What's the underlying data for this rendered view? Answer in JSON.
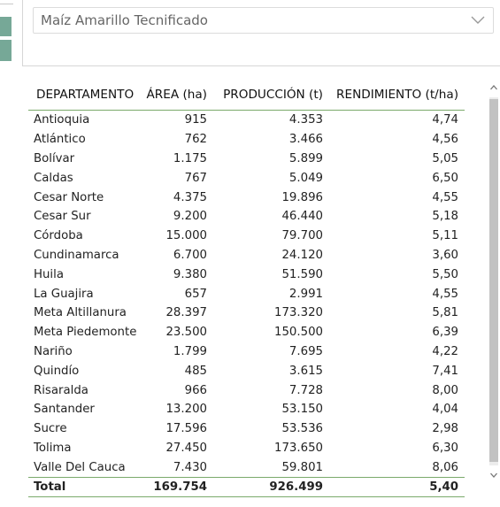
{
  "filter": {
    "selected": "Maíz Amarillo Tecnificado"
  },
  "table": {
    "headers": [
      "DEPARTAMENTO",
      "ÁREA (ha)",
      "PRODUCCIÓN (t)",
      "RENDIMIENTO (t/ha)"
    ],
    "rows": [
      [
        "Antioquia",
        "915",
        "4.353",
        "4,74"
      ],
      [
        "Atlántico",
        "762",
        "3.466",
        "4,56"
      ],
      [
        "Bolívar",
        "1.175",
        "5.899",
        "5,05"
      ],
      [
        "Caldas",
        "767",
        "5.049",
        "6,50"
      ],
      [
        "Cesar Norte",
        "4.375",
        "19.896",
        "4,55"
      ],
      [
        "Cesar Sur",
        "9.200",
        "46.440",
        "5,18"
      ],
      [
        "Córdoba",
        "15.000",
        "79.700",
        "5,11"
      ],
      [
        "Cundinamarca",
        "6.700",
        "24.120",
        "3,60"
      ],
      [
        "Huila",
        "9.380",
        "51.590",
        "5,50"
      ],
      [
        "La Guajira",
        "657",
        "2.991",
        "4,55"
      ],
      [
        "Meta Altillanura",
        "28.397",
        "173.320",
        "5,81"
      ],
      [
        "Meta Piedemonte",
        "23.500",
        "150.500",
        "6,39"
      ],
      [
        "Nariño",
        "1.799",
        "7.695",
        "4,22"
      ],
      [
        "Quindío",
        "485",
        "3.615",
        "7,41"
      ],
      [
        "Risaralda",
        "966",
        "7.728",
        "8,00"
      ],
      [
        "Santander",
        "13.200",
        "53.150",
        "4,04"
      ],
      [
        "Sucre",
        "17.596",
        "53.536",
        "2,98"
      ],
      [
        "Tolima",
        "27.450",
        "173.650",
        "6,30"
      ],
      [
        "Valle Del Cauca",
        "7.430",
        "59.801",
        "8,06"
      ]
    ],
    "total": [
      "Total",
      "169.754",
      "926.499",
      "5,40"
    ]
  },
  "icons": {
    "dropdown": "chevron-down-icon",
    "scroll_up": "chevron-up-icon",
    "scroll_down": "chevron-down-icon"
  },
  "colors": {
    "accent": "#76a897",
    "table_rule": "#7aaa6b",
    "scroll_thumb": "#c2c2c2"
  }
}
